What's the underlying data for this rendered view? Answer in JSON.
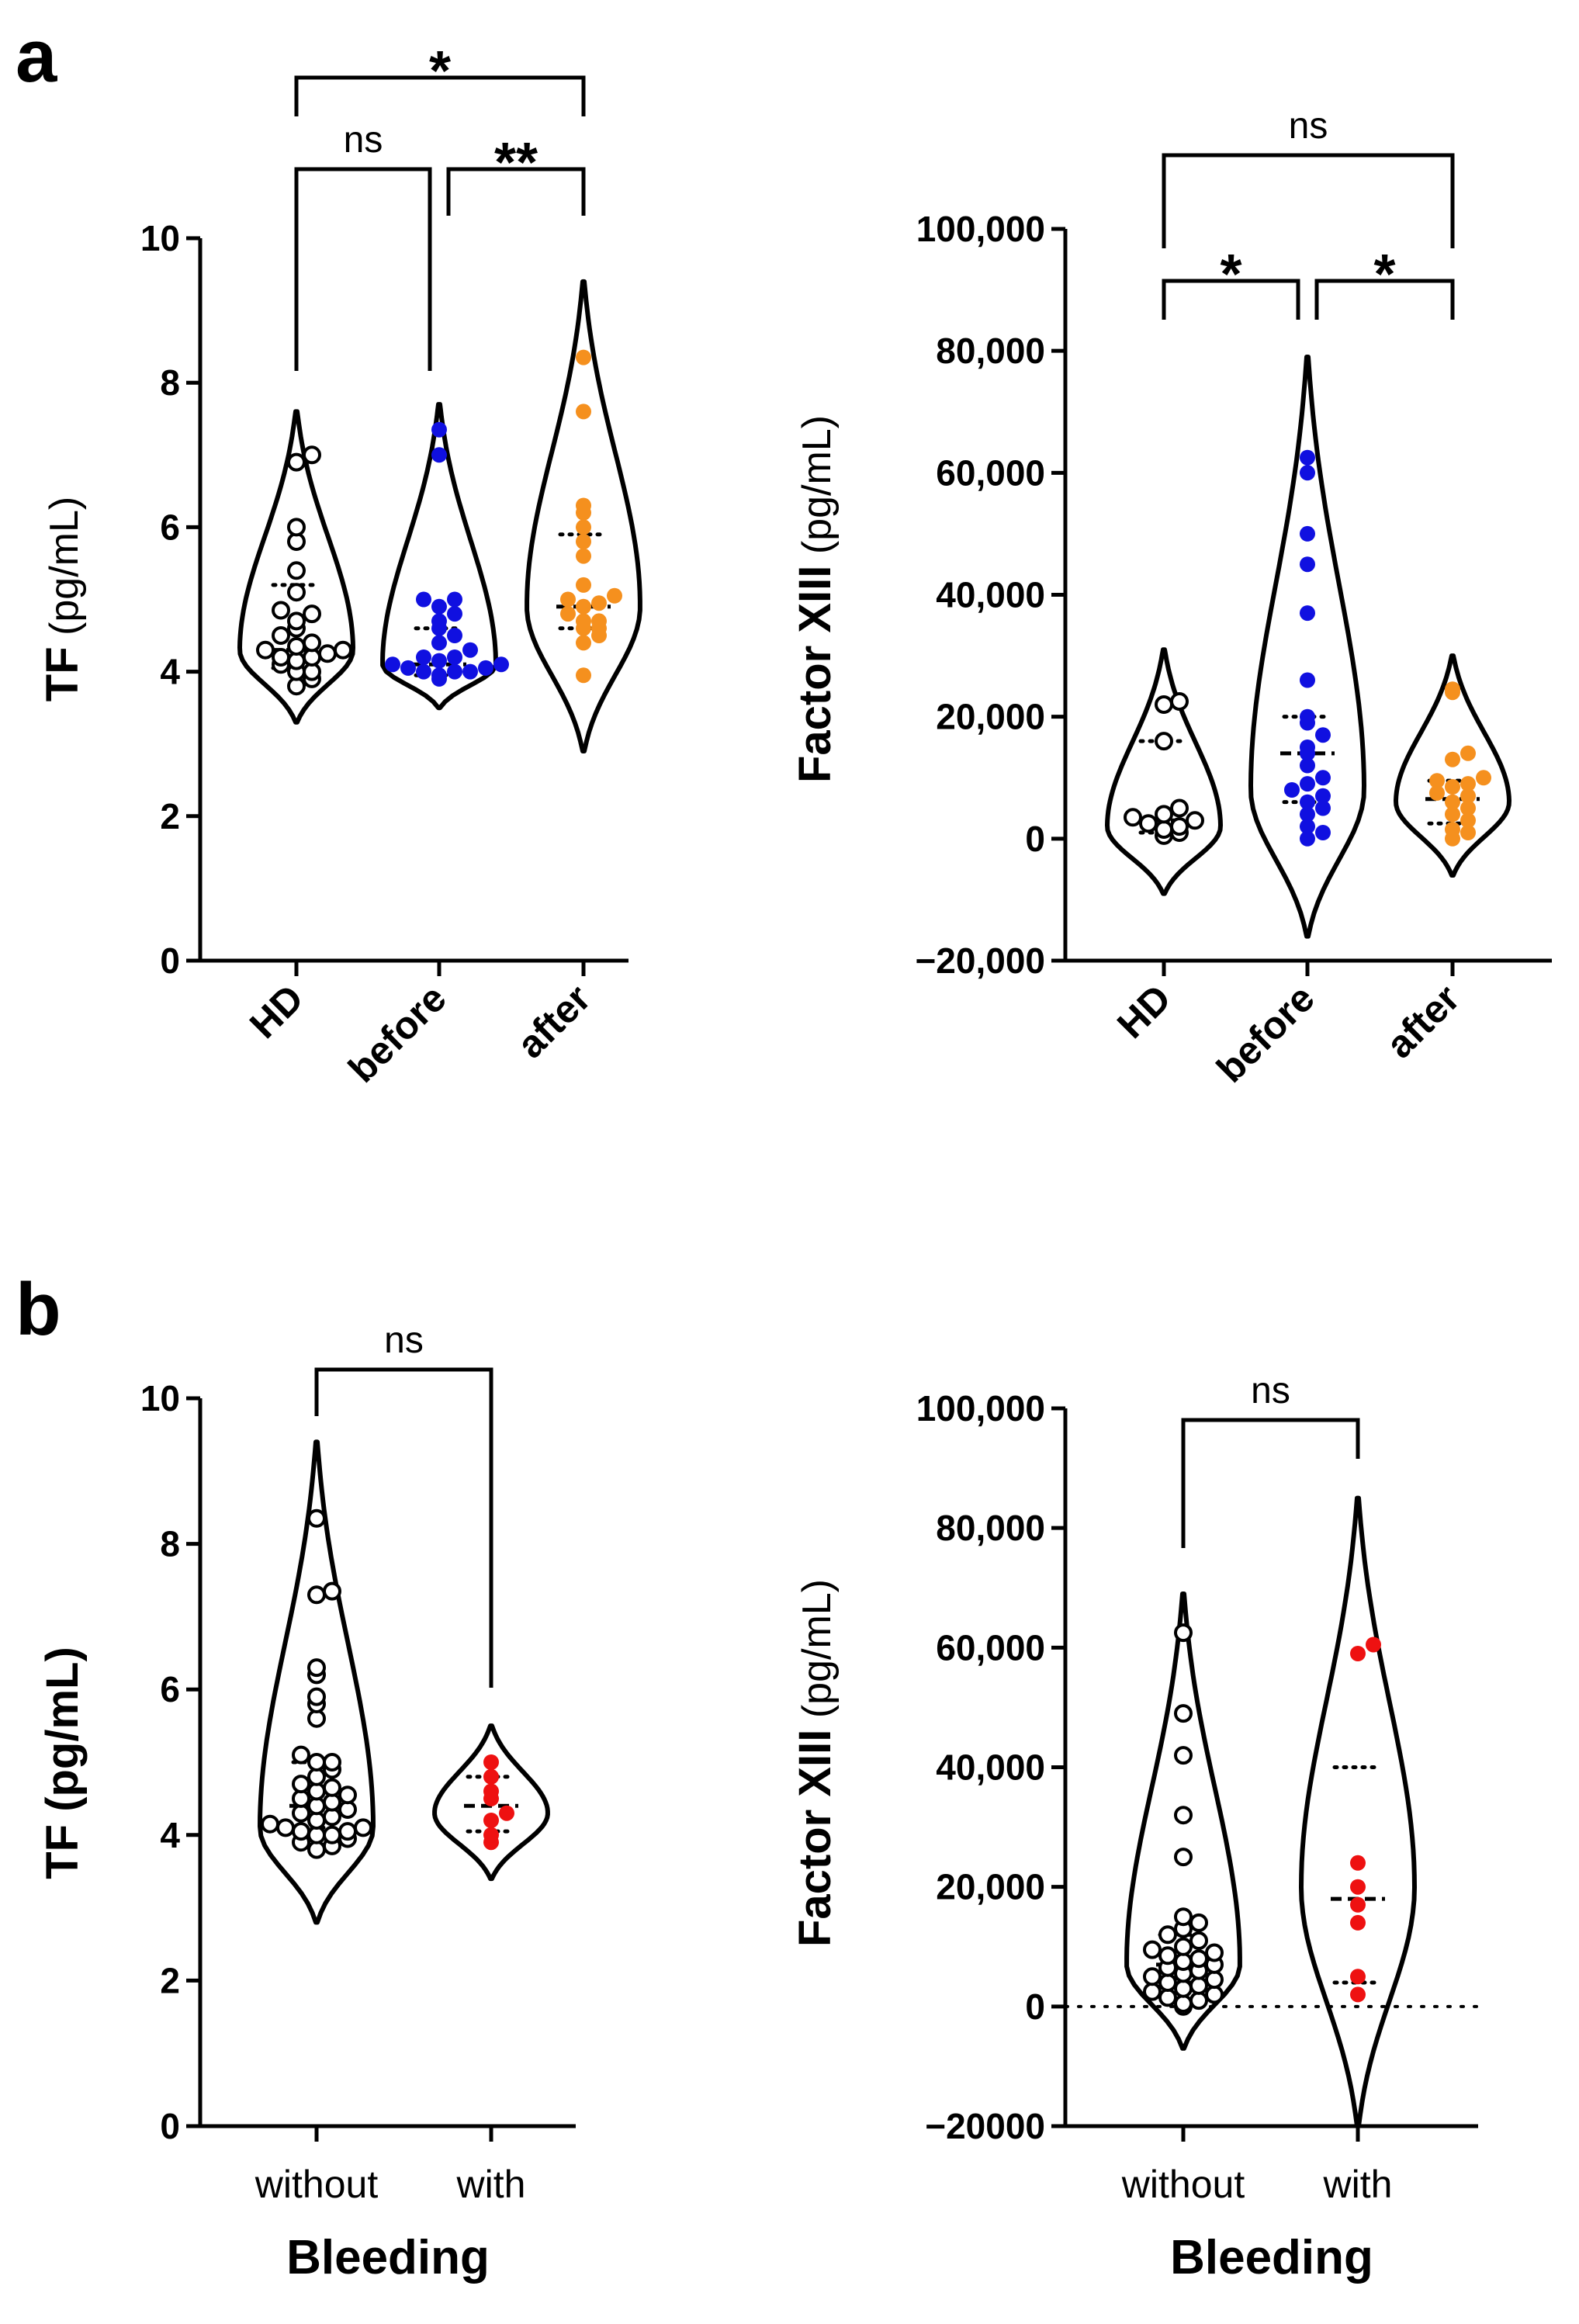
{
  "panels": [
    {
      "letter": "a"
    },
    {
      "letter": "b"
    }
  ],
  "chart_data": [
    {
      "type": "violin",
      "panel": "a",
      "ylabel_bold": "TF",
      "ylabel_rest": " (pg/mL)",
      "ylim": [
        0,
        10
      ],
      "yticks": [
        0,
        2,
        4,
        6,
        8,
        10
      ],
      "ytick_labels": [
        "0",
        "2",
        "4",
        "6",
        "8",
        "10"
      ],
      "xlabel": "",
      "categories": [
        "HD",
        "before",
        "after"
      ],
      "category_rotated": true,
      "colors": [
        "#000000",
        "#1010e0",
        "#f5901e"
      ],
      "hollow": [
        true,
        false,
        false
      ],
      "violin_range": [
        [
          3.3,
          7.6
        ],
        [
          3.5,
          7.7
        ],
        [
          2.9,
          9.4
        ]
      ],
      "violin_peak": [
        4.3,
        4.1,
        4.9
      ],
      "median": [
        4.3,
        4.1,
        4.9
      ],
      "quartiles": [
        [
          4.05,
          5.2
        ],
        [
          3.95,
          4.6
        ],
        [
          4.6,
          5.9
        ]
      ],
      "series": [
        {
          "name": "HD",
          "values": [
            3.8,
            3.9,
            4.0,
            4.0,
            4.1,
            4.15,
            4.2,
            4.2,
            4.25,
            4.3,
            4.3,
            4.35,
            4.4,
            4.5,
            4.6,
            4.7,
            4.8,
            4.85,
            5.1,
            5.4,
            5.8,
            6.0,
            6.9,
            7.0
          ]
        },
        {
          "name": "before",
          "values": [
            3.9,
            3.95,
            4.0,
            4.0,
            4.0,
            4.05,
            4.05,
            4.1,
            4.1,
            4.15,
            4.2,
            4.2,
            4.3,
            4.4,
            4.5,
            4.6,
            4.7,
            4.8,
            4.9,
            5.0,
            5.0,
            7.0,
            7.35
          ]
        },
        {
          "name": "after",
          "values": [
            3.95,
            4.4,
            4.5,
            4.6,
            4.6,
            4.7,
            4.7,
            4.8,
            4.9,
            4.95,
            5.0,
            5.05,
            5.2,
            5.6,
            5.8,
            6.0,
            6.2,
            6.3,
            7.6,
            8.35
          ]
        }
      ],
      "significance": [
        {
          "groups": [
            "HD",
            "before"
          ],
          "label": "ns"
        },
        {
          "groups": [
            "before",
            "after"
          ],
          "label": "**"
        },
        {
          "groups": [
            "HD",
            "after"
          ],
          "label": "*"
        }
      ]
    },
    {
      "type": "violin",
      "panel": "a",
      "ylabel_bold": "Factor XIII",
      "ylabel_rest": " (pg/mL)",
      "ylim": [
        -20000,
        100000
      ],
      "yticks": [
        -20000,
        0,
        20000,
        40000,
        60000,
        80000,
        100000
      ],
      "ytick_labels": [
        "−20,000",
        "0",
        "20,000",
        "40,000",
        "60,000",
        "80,000",
        "100,000"
      ],
      "xlabel": "",
      "categories": [
        "HD",
        "before",
        "after"
      ],
      "category_rotated": true,
      "colors": [
        "#000000",
        "#1010e0",
        "#f5901e"
      ],
      "hollow": [
        true,
        false,
        false
      ],
      "violin_range": [
        [
          -9000,
          31000
        ],
        [
          -16000,
          79000
        ],
        [
          -6000,
          30000
        ]
      ],
      "violin_peak": [
        2000,
        8000,
        6000
      ],
      "median": [
        3000,
        14000,
        6500
      ],
      "quartiles": [
        [
          1000,
          16000
        ],
        [
          6000,
          20000
        ],
        [
          2500,
          9500
        ]
      ],
      "series": [
        {
          "name": "HD",
          "values": [
            500,
            1000,
            1500,
            2000,
            2500,
            3000,
            3500,
            4000,
            5000,
            16000,
            22000,
            22500
          ]
        },
        {
          "name": "before",
          "values": [
            0,
            1000,
            2000,
            4000,
            5000,
            6000,
            7000,
            8000,
            9000,
            10000,
            12000,
            14000,
            15000,
            17000,
            19000,
            20000,
            26000,
            37000,
            45000,
            50000,
            60000,
            62500
          ]
        },
        {
          "name": "after",
          "values": [
            0,
            1000,
            1500,
            3000,
            4000,
            5000,
            6000,
            7000,
            7500,
            8500,
            9000,
            9500,
            10000,
            13000,
            14000,
            24000,
            24500
          ]
        }
      ],
      "significance": [
        {
          "groups": [
            "HD",
            "before"
          ],
          "label": "*"
        },
        {
          "groups": [
            "before",
            "after"
          ],
          "label": "*"
        },
        {
          "groups": [
            "HD",
            "after"
          ],
          "label": "ns"
        }
      ]
    },
    {
      "type": "violin",
      "panel": "b",
      "ylabel_bold": "TF (pg/mL)",
      "ylabel_rest": "",
      "ylim": [
        0,
        10
      ],
      "yticks": [
        0,
        2,
        4,
        6,
        8,
        10
      ],
      "ytick_labels": [
        "0",
        "2",
        "4",
        "6",
        "8",
        "10"
      ],
      "xlabel": "Bleeding",
      "categories": [
        "without",
        "with"
      ],
      "category_rotated": false,
      "colors": [
        "#000000",
        "#ee1111"
      ],
      "hollow": [
        true,
        false
      ],
      "violin_range": [
        [
          2.8,
          9.4
        ],
        [
          3.4,
          5.5
        ]
      ],
      "violin_peak": [
        4.1,
        4.3
      ],
      "median": [
        4.4,
        4.4
      ],
      "quartiles": [
        [
          4.1,
          5.0
        ],
        [
          4.05,
          4.8
        ]
      ],
      "series": [
        {
          "name": "without",
          "values": [
            3.8,
            3.85,
            3.9,
            3.95,
            4.0,
            4.0,
            4.05,
            4.05,
            4.1,
            4.1,
            4.15,
            4.2,
            4.25,
            4.3,
            4.35,
            4.4,
            4.45,
            4.5,
            4.55,
            4.6,
            4.65,
            4.7,
            4.8,
            4.9,
            5.0,
            5.0,
            5.1,
            5.6,
            5.8,
            5.9,
            6.2,
            6.3,
            7.3,
            7.35,
            8.35
          ]
        },
        {
          "name": "with",
          "values": [
            3.9,
            4.0,
            4.2,
            4.3,
            4.5,
            4.6,
            4.8,
            5.0
          ]
        }
      ],
      "significance": [
        {
          "groups": [
            "without",
            "with"
          ],
          "label": "ns"
        }
      ]
    },
    {
      "type": "violin",
      "panel": "b",
      "ylabel_bold": "Factor XIII",
      "ylabel_rest": " (pg/mL)",
      "ylim": [
        -20000,
        100000
      ],
      "yticks": [
        -20000,
        0,
        20000,
        40000,
        60000,
        80000,
        100000
      ],
      "ytick_labels": [
        "−20000",
        "0",
        "20,000",
        "40,000",
        "60,000",
        "80,000",
        "100,000"
      ],
      "xlabel": "Bleeding",
      "categories": [
        "without",
        "with"
      ],
      "category_rotated": false,
      "colors": [
        "#000000",
        "#ee1111"
      ],
      "hollow": [
        true,
        false
      ],
      "violin_range": [
        [
          -7000,
          69000
        ],
        [
          -20000,
          85000
        ]
      ],
      "violin_peak": [
        7000,
        20000
      ],
      "median": [
        7000,
        18000
      ],
      "quartiles": [
        [
          4000,
          12000
        ],
        [
          4000,
          40000
        ]
      ],
      "zero_line": true,
      "series": [
        {
          "name": "without",
          "values": [
            0,
            500,
            1000,
            1500,
            2000,
            2500,
            3000,
            3500,
            4000,
            4500,
            5000,
            5500,
            6000,
            6500,
            7000,
            7500,
            8000,
            8500,
            9000,
            9500,
            10000,
            11000,
            12000,
            13000,
            14000,
            15000,
            25000,
            32000,
            42000,
            49000,
            62500
          ]
        },
        {
          "name": "with",
          "values": [
            2000,
            5000,
            14000,
            17000,
            20000,
            24000,
            59000,
            60500
          ]
        }
      ],
      "significance": [
        {
          "groups": [
            "without",
            "with"
          ],
          "label": "ns"
        }
      ]
    }
  ]
}
